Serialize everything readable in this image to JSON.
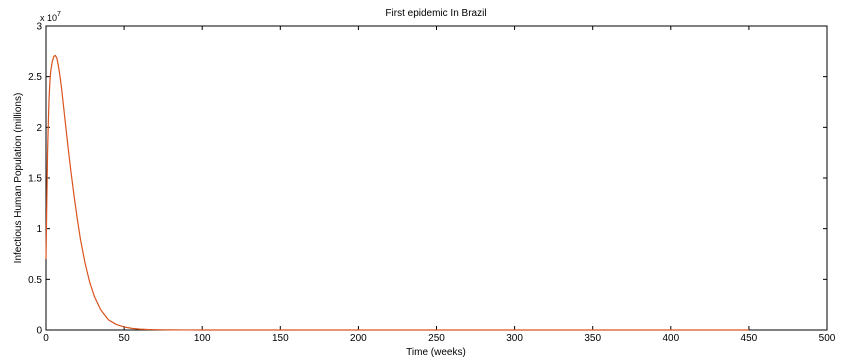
{
  "chart_data": {
    "type": "line",
    "title": "First epidemic In Brazil",
    "xlabel": "Time (weeks)",
    "ylabel": "Infectious Human Population (millions)",
    "xlim": [
      0,
      500
    ],
    "ylim": [
      0,
      3
    ],
    "x_ticks": [
      "0",
      "50",
      "100",
      "150",
      "200",
      "250",
      "300",
      "350",
      "400",
      "450",
      "500"
    ],
    "y_ticks": [
      "0",
      "0.5",
      "1",
      "1.5",
      "2",
      "2.5",
      "3"
    ],
    "y_exponent_base": "x 10",
    "y_exponent_power": "7",
    "grid": false,
    "series": [
      {
        "color": "#d9541e",
        "x": [
          0,
          0.5,
          1,
          1.5,
          2,
          2.5,
          3,
          4,
          5,
          6,
          7,
          8,
          9,
          10,
          12,
          14,
          16,
          18,
          20,
          22,
          25,
          28,
          31,
          35,
          40,
          45,
          50,
          55,
          60,
          65,
          70,
          75,
          80,
          90,
          100,
          150,
          200,
          250,
          300,
          350,
          400,
          450
        ],
        "y": [
          0.7,
          1.25,
          1.75,
          2.05,
          2.3,
          2.45,
          2.55,
          2.65,
          2.7,
          2.71,
          2.68,
          2.6,
          2.5,
          2.38,
          2.1,
          1.82,
          1.56,
          1.32,
          1.1,
          0.9,
          0.66,
          0.47,
          0.33,
          0.2,
          0.1,
          0.055,
          0.03,
          0.016,
          0.009,
          0.005,
          0.003,
          0.002,
          0.001,
          0.0005,
          0.0002,
          0,
          0,
          0,
          0,
          0,
          0,
          0
        ]
      }
    ]
  }
}
